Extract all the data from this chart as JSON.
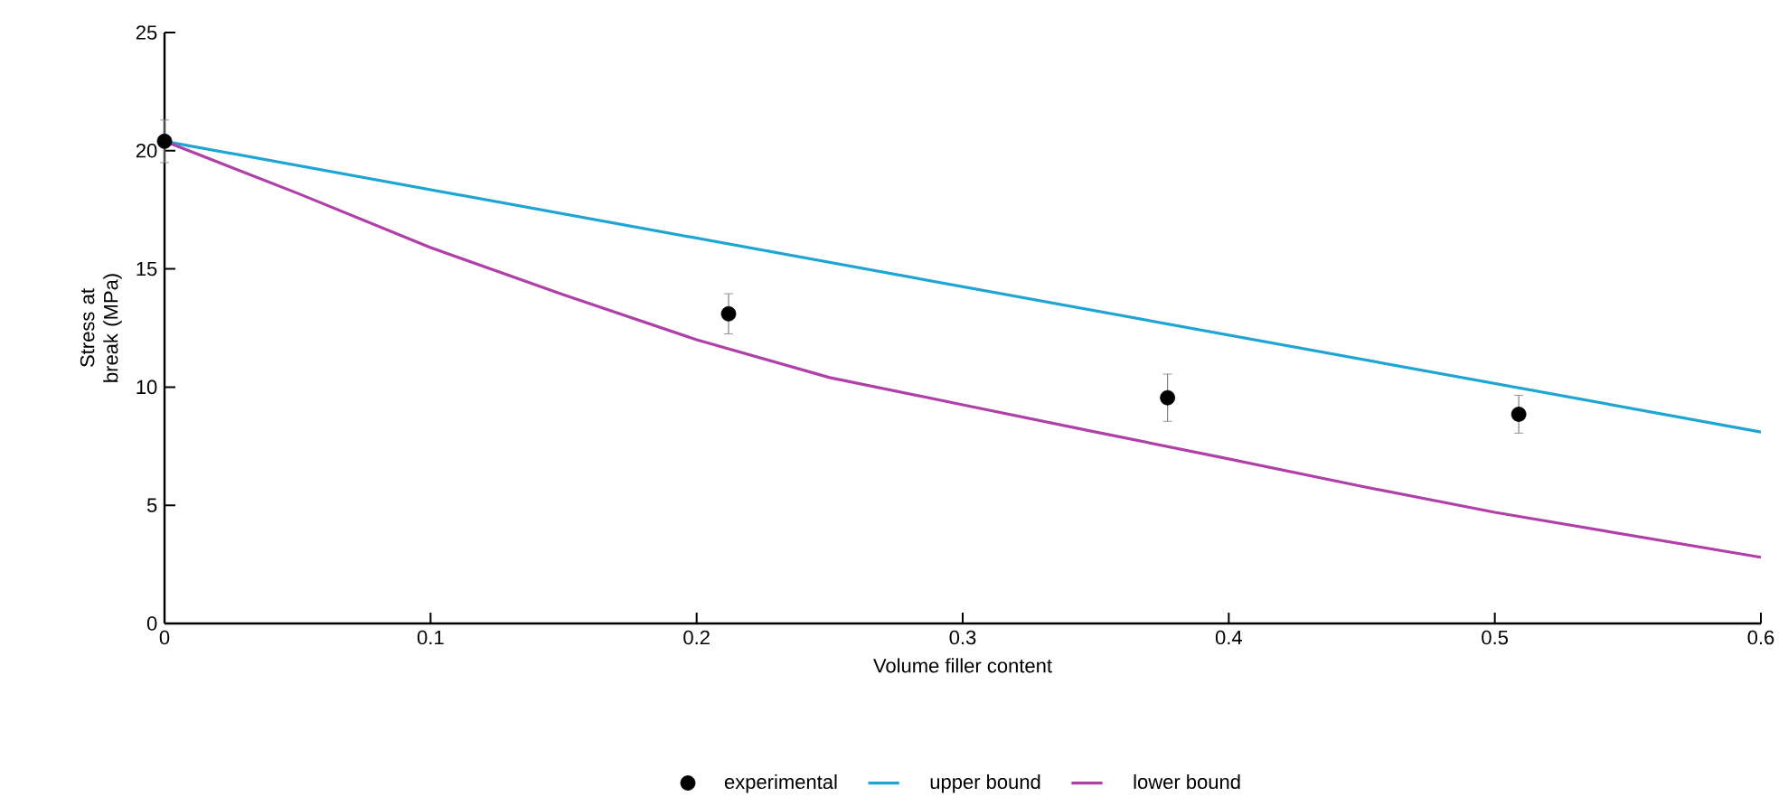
{
  "chart_data": {
    "type": "line",
    "xlabel": "Volume filler content",
    "ylabel": "Stress at break (MPa)",
    "xlim": [
      0,
      0.6
    ],
    "xticks": [
      0,
      0.1,
      0.2,
      0.3,
      0.4,
      0.5,
      0.6
    ],
    "ylim": [
      0,
      25
    ],
    "yticks": [
      0,
      5,
      10,
      15,
      20,
      25
    ],
    "grid": false,
    "legend": "bottom",
    "series": [
      {
        "name": "experimental",
        "type": "scatter",
        "marker": "circle",
        "color": "#000000",
        "x": [
          0,
          0.212,
          0.377,
          0.509
        ],
        "values": [
          20.4,
          13.1,
          9.55,
          8.85
        ],
        "errors": [
          0.9,
          0.85,
          1.0,
          0.8
        ]
      },
      {
        "name": "upper bound",
        "type": "line",
        "color": "#1fa5d4",
        "x": [
          0,
          0.6
        ],
        "values": [
          20.4,
          8.1
        ]
      },
      {
        "name": "lower bound",
        "type": "line",
        "color": "#b03fa8",
        "x": [
          0,
          0.05,
          0.1,
          0.15,
          0.2,
          0.25,
          0.3,
          0.35,
          0.4,
          0.45,
          0.5,
          0.55,
          0.6
        ],
        "values": [
          20.4,
          18.2,
          15.9,
          13.9,
          12.0,
          10.4,
          9.25,
          8.1,
          6.96,
          5.8,
          4.7,
          3.75,
          2.8
        ]
      }
    ]
  }
}
